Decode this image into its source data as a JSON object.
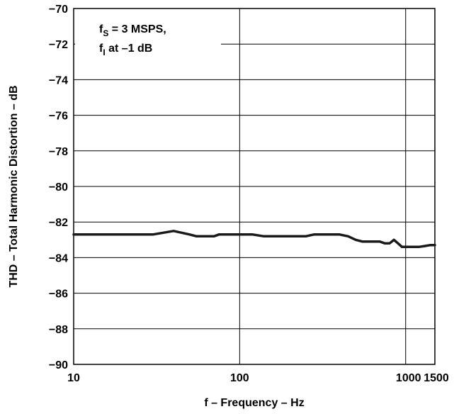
{
  "chart_data": {
    "type": "line",
    "xlabel": "f – Frequency – Hz",
    "ylabel": "THD – Total Harmonic Distortion – dB",
    "x_scale": "log",
    "xlim": [
      10,
      1500
    ],
    "ylim": [
      -90,
      -70
    ],
    "x_ticks": [
      10,
      100,
      1000,
      1500
    ],
    "x_tick_labels": [
      "10",
      "100",
      "1000",
      "1500"
    ],
    "y_ticks": [
      -70,
      -72,
      -74,
      -76,
      -78,
      -80,
      -82,
      -84,
      -86,
      -88,
      -90
    ],
    "y_tick_labels": [
      "−70",
      "−72",
      "−74",
      "−76",
      "−78",
      "−80",
      "−82",
      "−84",
      "−86",
      "−88",
      "−90"
    ],
    "grid": {
      "x": true,
      "y": true
    },
    "annotation": {
      "line1_main": "f",
      "line1_sub": "S",
      "line1_rest": " = 3 MSPS,",
      "line2_main": "f",
      "line2_sub": "I",
      "line2_rest": " at –1 dB"
    },
    "series": [
      {
        "color": "#1a1a1a",
        "x": [
          10,
          20,
          30,
          40,
          50,
          55,
          70,
          75,
          100,
          120,
          140,
          200,
          250,
          280,
          300,
          350,
          400,
          450,
          500,
          550,
          600,
          700,
          750,
          800,
          850,
          900,
          950,
          1000,
          1050,
          1100,
          1200,
          1300,
          1400,
          1500
        ],
        "y": [
          -82.7,
          -82.7,
          -82.7,
          -82.5,
          -82.7,
          -82.8,
          -82.8,
          -82.7,
          -82.7,
          -82.7,
          -82.8,
          -82.8,
          -82.8,
          -82.7,
          -82.7,
          -82.7,
          -82.7,
          -82.8,
          -83.0,
          -83.1,
          -83.1,
          -83.1,
          -83.2,
          -83.2,
          -83.0,
          -83.2,
          -83.4,
          -83.4,
          -83.4,
          -83.4,
          -83.4,
          -83.35,
          -83.3,
          -83.3
        ]
      }
    ]
  }
}
